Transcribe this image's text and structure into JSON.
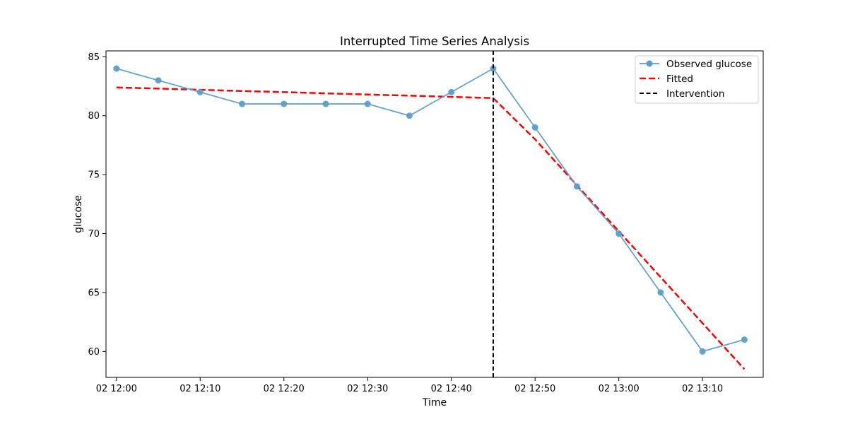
{
  "chart_data": {
    "type": "line",
    "title": "Interrupted Time Series Analysis",
    "xlabel": "Time",
    "ylabel": "glucose",
    "x_tick_labels": [
      "02 12:00",
      "02 12:10",
      "02 12:20",
      "02 12:30",
      "02 12:40",
      "02 12:50",
      "02 13:00",
      "02 13:10"
    ],
    "x_tick_values": [
      "12:00",
      "12:10",
      "12:20",
      "12:30",
      "12:40",
      "12:50",
      "13:00",
      "13:10"
    ],
    "y_ticks": [
      60,
      65,
      70,
      75,
      80,
      85
    ],
    "xlim": [
      "11:58:45",
      "13:17:15"
    ],
    "ylim": [
      57.8,
      85.5
    ],
    "x": [
      "12:00",
      "12:05",
      "12:10",
      "12:15",
      "12:20",
      "12:25",
      "12:30",
      "12:35",
      "12:40",
      "12:45",
      "12:50",
      "12:55",
      "13:00",
      "13:05",
      "13:10",
      "13:15"
    ],
    "series": [
      {
        "name": "Observed glucose",
        "style": "line-with-markers",
        "color": "#5b9ec9",
        "values": [
          84,
          83,
          82,
          81,
          81,
          81,
          81,
          80,
          82,
          84,
          79,
          74,
          70,
          65,
          60,
          61
        ]
      },
      {
        "name": "Fitted",
        "style": "dashed",
        "color": "#ff0000",
        "segments": [
          {
            "x": [
              "12:00",
              "12:45"
            ],
            "values": [
              82.4,
              81.5
            ]
          },
          {
            "x": [
              "12:45",
              "12:50",
              "12:55",
              "13:00",
              "13:05",
              "13:10",
              "13:15"
            ],
            "values": [
              81.5,
              78.0,
              74.1,
              70.2,
              66.3,
              62.4,
              58.5
            ]
          }
        ]
      }
    ],
    "intervention": {
      "name": "Intervention",
      "x": "12:45",
      "style": "dashed",
      "color": "#000000"
    },
    "legend_position": "top-right",
    "grid": false
  }
}
